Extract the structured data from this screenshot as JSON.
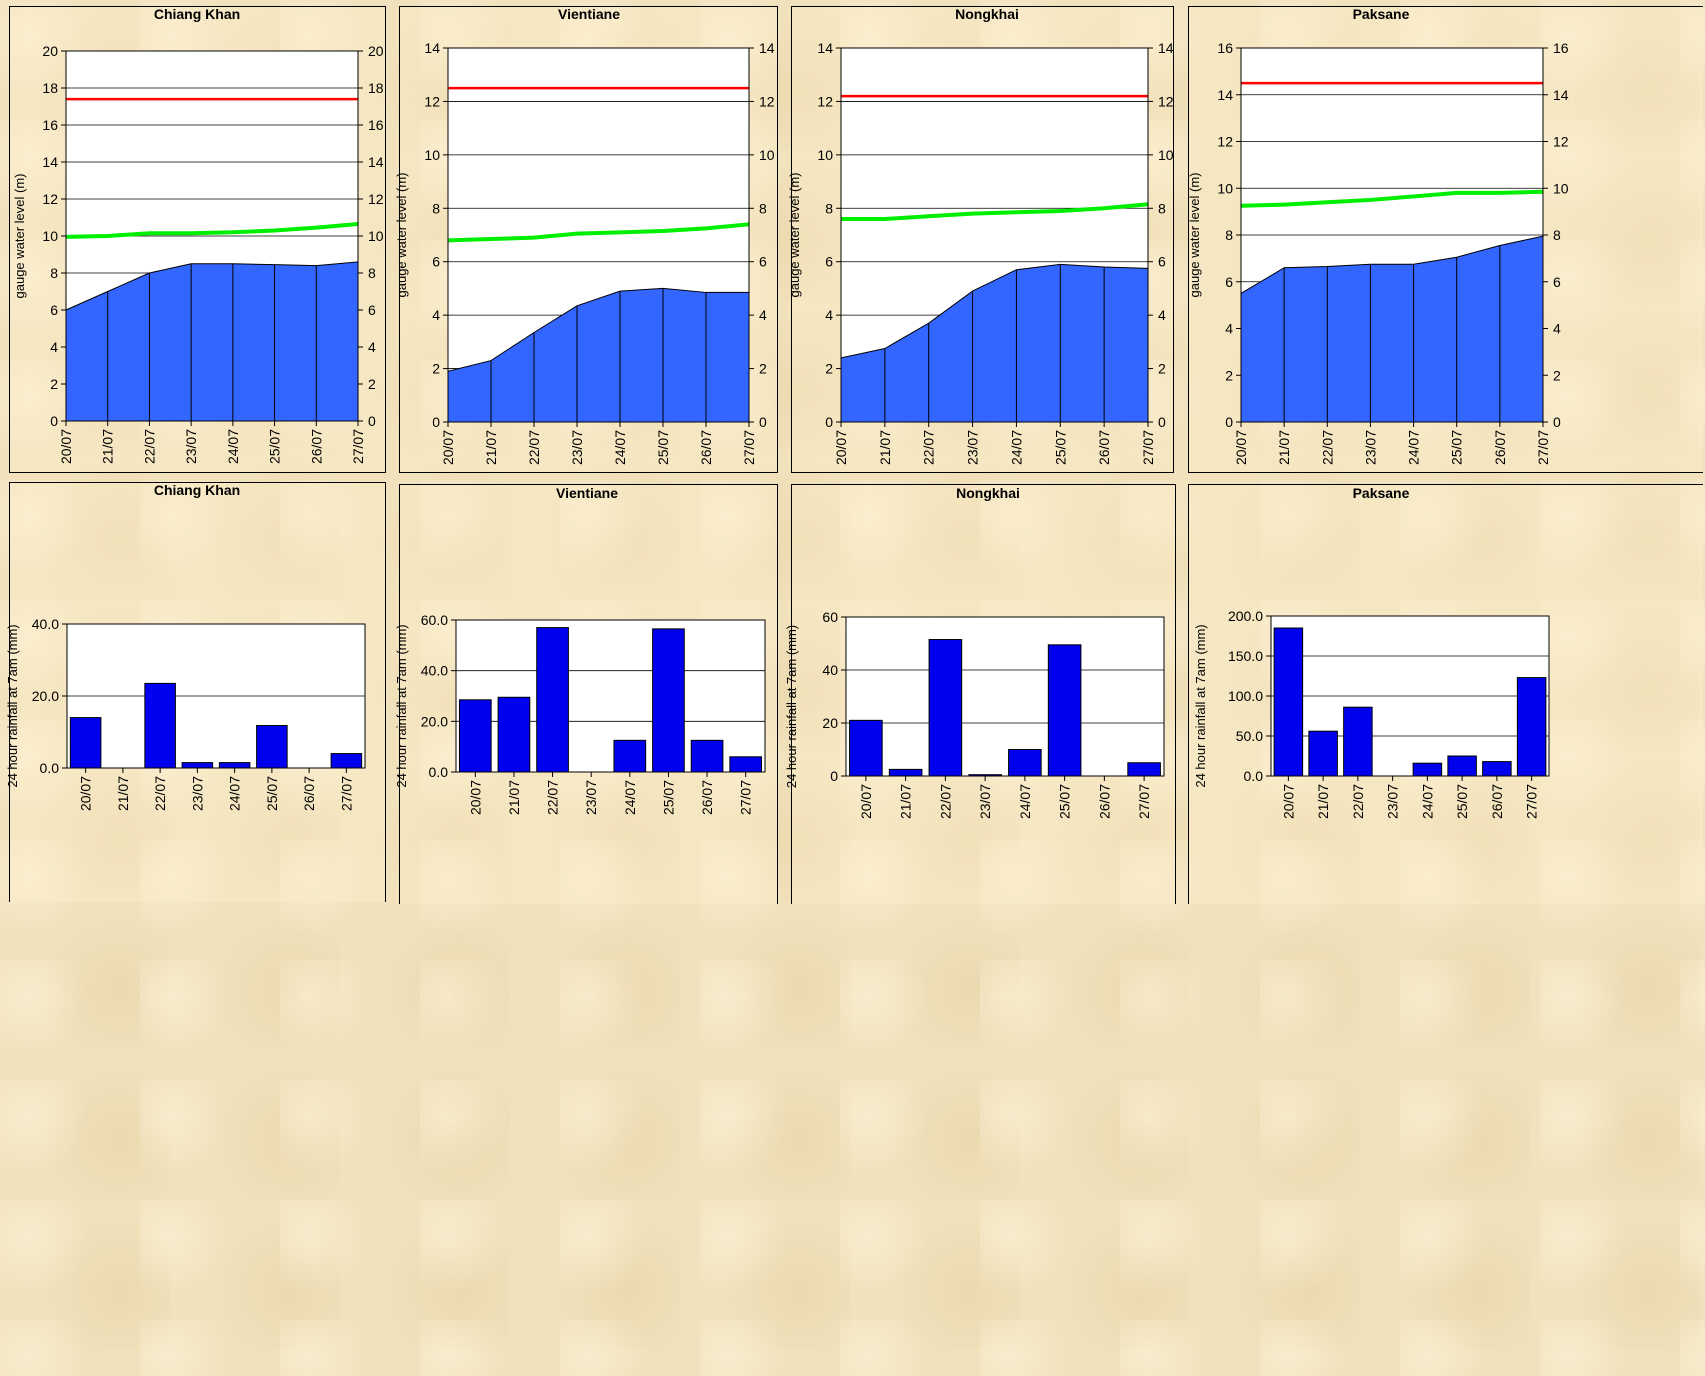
{
  "colors": {
    "area_fill": "#3366ff",
    "rain_bar": "#0000ee",
    "alarm_line": "#ff0000",
    "flood_line": "#00ee00",
    "plot_bg": "#ffffff"
  },
  "chart_data": [
    {
      "type": "area",
      "title": "Chiang Khan",
      "ylabel": "gauge water level (m)",
      "categories": [
        "20/07",
        "21/07",
        "22/07",
        "23/07",
        "24/07",
        "25/07",
        "26/07",
        "27/07"
      ],
      "series": [
        {
          "values": [
            6.0,
            7.0,
            8.0,
            8.5,
            8.5,
            8.45,
            8.4,
            8.6
          ]
        }
      ],
      "reference_lines": [
        {
          "values": [
            17.4,
            17.4,
            17.4,
            17.4,
            17.4,
            17.4,
            17.4,
            17.4
          ],
          "color": "red"
        },
        {
          "values": [
            9.95,
            10.0,
            10.15,
            10.15,
            10.2,
            10.3,
            10.45,
            10.65
          ],
          "color": "green"
        }
      ],
      "yticks": [
        0,
        2,
        4,
        6,
        8,
        10,
        12,
        14,
        16,
        18,
        20
      ],
      "ylim": [
        0,
        20
      ],
      "y_axis_right": true,
      "grid": true
    },
    {
      "type": "area",
      "title": "Vientiane",
      "ylabel": "gauge water level (m)",
      "categories": [
        "20/07",
        "21/07",
        "22/07",
        "23/07",
        "24/07",
        "25/07",
        "26/07",
        "27/07"
      ],
      "series": [
        {
          "values": [
            1.9,
            2.3,
            3.35,
            4.35,
            4.9,
            5.0,
            4.85,
            4.85
          ]
        }
      ],
      "reference_lines": [
        {
          "values": [
            12.5,
            12.5,
            12.5,
            12.5,
            12.5,
            12.5,
            12.5,
            12.5
          ],
          "color": "red"
        },
        {
          "values": [
            6.8,
            6.85,
            6.9,
            7.05,
            7.1,
            7.15,
            7.25,
            7.4
          ],
          "color": "green"
        }
      ],
      "yticks": [
        0,
        2,
        4,
        6,
        8,
        10,
        12,
        14
      ],
      "ylim": [
        0,
        14
      ],
      "y_axis_right": true,
      "grid": true
    },
    {
      "type": "area",
      "title": "Nongkhai",
      "ylabel": "gauge water level (m)",
      "categories": [
        "20/07",
        "21/07",
        "22/07",
        "23/07",
        "24/07",
        "25/07",
        "26/07",
        "27/07"
      ],
      "series": [
        {
          "values": [
            2.4,
            2.75,
            3.7,
            4.9,
            5.7,
            5.9,
            5.8,
            5.75
          ]
        }
      ],
      "reference_lines": [
        {
          "values": [
            12.2,
            12.2,
            12.2,
            12.2,
            12.2,
            12.2,
            12.2,
            12.2
          ],
          "color": "red"
        },
        {
          "values": [
            7.6,
            7.6,
            7.7,
            7.8,
            7.85,
            7.9,
            8.0,
            8.15
          ],
          "color": "green"
        }
      ],
      "yticks": [
        0,
        2,
        4,
        6,
        8,
        10,
        12,
        14
      ],
      "ylim": [
        0,
        14
      ],
      "y_axis_right": true,
      "grid": true
    },
    {
      "type": "area",
      "title": "Paksane",
      "ylabel": "gauge water level (m)",
      "categories": [
        "20/07",
        "21/07",
        "22/07",
        "23/07",
        "24/07",
        "25/07",
        "26/07",
        "27/07"
      ],
      "series": [
        {
          "values": [
            5.5,
            6.6,
            6.65,
            6.75,
            6.75,
            7.05,
            7.55,
            7.95
          ]
        }
      ],
      "reference_lines": [
        {
          "values": [
            14.5,
            14.5,
            14.5,
            14.5,
            14.5,
            14.5,
            14.5,
            14.5
          ],
          "color": "red"
        },
        {
          "values": [
            9.25,
            9.3,
            9.4,
            9.5,
            9.65,
            9.8,
            9.8,
            9.85
          ],
          "color": "green"
        }
      ],
      "yticks": [
        0,
        2,
        4,
        6,
        8,
        10,
        12,
        14,
        16
      ],
      "ylim": [
        0,
        16
      ],
      "y_axis_right": true,
      "grid": true
    },
    {
      "type": "bar",
      "title": "Chiang Khan",
      "ylabel": "24 hour rainfall at 7am (mm)",
      "categories": [
        "20/07",
        "21/07",
        "22/07",
        "23/07",
        "24/07",
        "25/07",
        "26/07",
        "27/07"
      ],
      "values": [
        14.0,
        0.0,
        23.5,
        1.5,
        1.5,
        11.8,
        0.0,
        4.0
      ],
      "yticks": [
        "0.0",
        "20.0",
        "40.0"
      ],
      "ylim": [
        0,
        40
      ],
      "grid": true
    },
    {
      "type": "bar",
      "title": "Vientiane",
      "ylabel": "24 hour rainfall at 7am (mm)",
      "categories": [
        "20/07",
        "21/07",
        "22/07",
        "23/07",
        "24/07",
        "25/07",
        "26/07",
        "27/07"
      ],
      "values": [
        28.5,
        29.5,
        57.0,
        0.0,
        12.5,
        56.5,
        12.5,
        6.0
      ],
      "yticks": [
        "0.0",
        "20.0",
        "40.0",
        "60.0"
      ],
      "ylim": [
        0,
        60
      ],
      "grid": true
    },
    {
      "type": "bar",
      "title": "Nongkhai",
      "ylabel": "24 hour rainfall at 7am (mm)",
      "categories": [
        "20/07",
        "21/07",
        "22/07",
        "23/07",
        "24/07",
        "25/07",
        "26/07",
        "27/07"
      ],
      "values": [
        21.0,
        2.5,
        51.5,
        0.5,
        10.0,
        49.5,
        0.0,
        5.0
      ],
      "yticks": [
        "0",
        "20",
        "40",
        "60"
      ],
      "ylim": [
        0,
        60
      ],
      "grid": true
    },
    {
      "type": "bar",
      "title": "Paksane",
      "ylabel": "24 hour rainfall at 7am (mm)",
      "categories": [
        "20/07",
        "21/07",
        "22/07",
        "23/07",
        "24/07",
        "25/07",
        "26/07",
        "27/07"
      ],
      "values": [
        185.0,
        56.0,
        86.0,
        0.0,
        16.0,
        25.0,
        18.0,
        123.0
      ],
      "yticks": [
        "0.0",
        "50.0",
        "100.0",
        "150.0",
        "200.0"
      ],
      "ylim": [
        0,
        200
      ],
      "grid": true
    }
  ]
}
